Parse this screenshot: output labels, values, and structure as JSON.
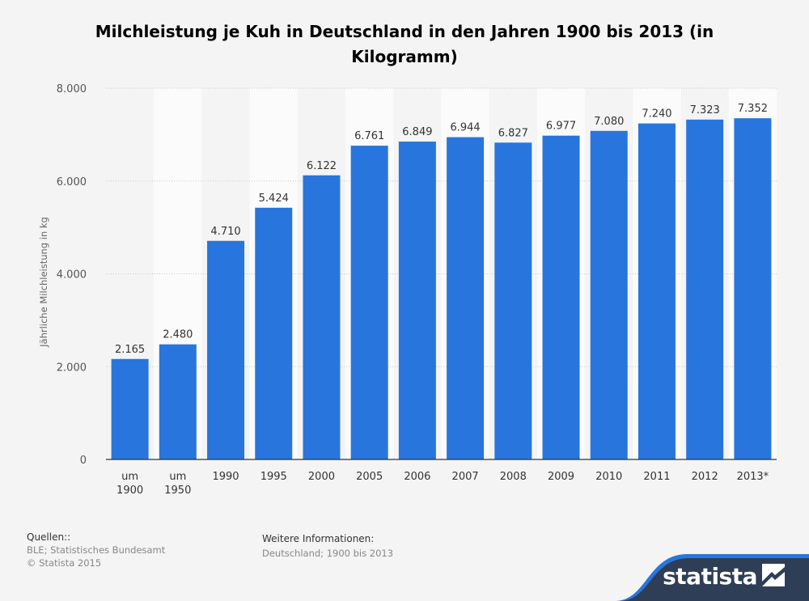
{
  "title": "Milchleistung je Kuh in Deutschland in den Jahren 1900 bis 2013 (in Kilogramm)",
  "colors": {
    "bar": "#2876dd",
    "band": "#fbfbfb",
    "brand": "#2e3e57"
  },
  "sources": {
    "heading": "Quellen::",
    "line1": "BLE; Statistisches Bundesamt",
    "line2": "© Statista 2015"
  },
  "info": {
    "heading": "Weitere Informationen:",
    "line1": "Deutschland; 1900 bis 2013"
  },
  "brand": {
    "name": "statista",
    "logo_icon": "statista-logo-icon"
  },
  "chart_data": {
    "type": "bar",
    "title": "Milchleistung je Kuh in Deutschland in den Jahren 1900 bis 2013 (in Kilogramm)",
    "xlabel": "",
    "ylabel": "Jährliche Milchleistung in kg",
    "ylim": [
      0,
      8000
    ],
    "yticks": [
      0,
      2000,
      4000,
      6000,
      8000
    ],
    "ytick_labels": [
      "0",
      "2.000",
      "4.000",
      "6.000",
      "8.000"
    ],
    "grid": true,
    "categories": [
      "um\n1900",
      "um\n1950",
      "1990",
      "1995",
      "2000",
      "2005",
      "2006",
      "2007",
      "2008",
      "2009",
      "2010",
      "2011",
      "2012",
      "2013*"
    ],
    "values": [
      2165,
      2480,
      4710,
      5424,
      6122,
      6761,
      6849,
      6944,
      6827,
      6977,
      7080,
      7240,
      7323,
      7352
    ],
    "value_labels": [
      "2.165",
      "2.480",
      "4.710",
      "5.424",
      "6.122",
      "6.761",
      "6.849",
      "6.944",
      "6.827",
      "6.977",
      "7.080",
      "7.240",
      "7.323",
      "7.352"
    ]
  }
}
